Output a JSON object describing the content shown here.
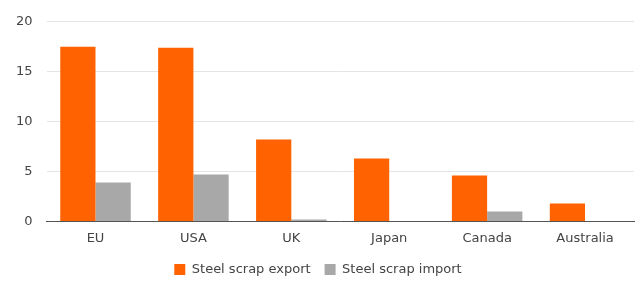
{
  "chart_data": {
    "type": "bar",
    "categories": [
      "EU",
      "USA",
      "UK",
      "Japan",
      "Canada",
      "Australia"
    ],
    "series": [
      {
        "name": "Steel scrap export",
        "color": "#ff6200",
        "values": [
          17.5,
          17.4,
          8.2,
          6.3,
          4.6,
          1.8
        ]
      },
      {
        "name": "Steel scrap import",
        "color": "#a8a8a8",
        "values": [
          3.9,
          4.7,
          0.2,
          0,
          1.0,
          0
        ]
      }
    ],
    "ylim": [
      0,
      20
    ],
    "yticks": [
      0,
      5,
      10,
      15,
      20
    ],
    "grid": true,
    "legend": "bottom"
  }
}
